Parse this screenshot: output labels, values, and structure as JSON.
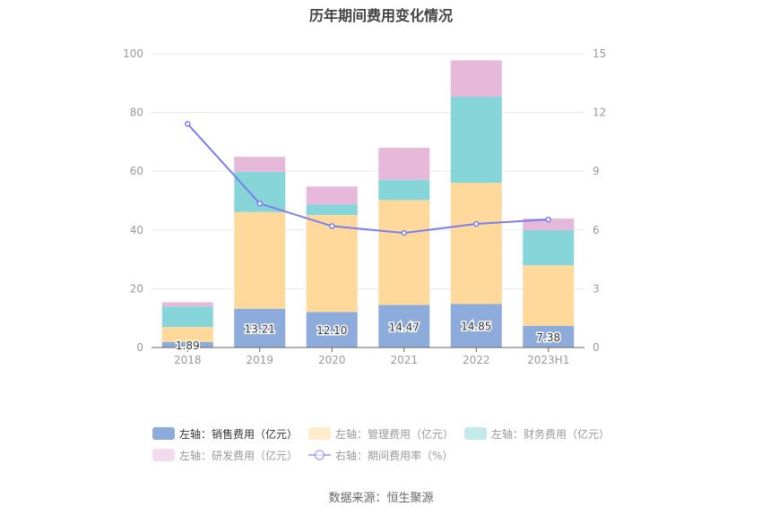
{
  "title": "历年期间费用变化情况",
  "footer": "数据来源：恒生聚源",
  "colors": {
    "sales": "#8dabdb",
    "admin": "#ffd99b",
    "finance": "#86d5d8",
    "rnd": "#e6b8d9",
    "rate": "#7a7ef0",
    "grid": "#e3e8f2",
    "axis": "#666666"
  },
  "legend": [
    {
      "label": "左轴：销售费用（亿元）",
      "key": "sales",
      "type": "bar",
      "active": true
    },
    {
      "label": "左轴：管理费用（亿元）",
      "key": "admin",
      "type": "bar",
      "active": false
    },
    {
      "label": "左轴：财务费用（亿元）",
      "key": "finance",
      "type": "bar",
      "active": false
    },
    {
      "label": "左轴：研发费用（亿元）",
      "key": "rnd",
      "type": "bar",
      "active": false
    },
    {
      "label": "右轴：期间费用率（%）",
      "key": "rate",
      "type": "line",
      "active": false
    }
  ],
  "chart_data": {
    "type": "bar",
    "title": "历年期间费用变化情况",
    "categories": [
      "2018",
      "2019",
      "2020",
      "2021",
      "2022",
      "2023H1"
    ],
    "stacked": true,
    "series": [
      {
        "name": "左轴：销售费用（亿元）",
        "key": "sales",
        "axis": "left",
        "values": [
          1.89,
          13.21,
          12.1,
          14.47,
          14.85,
          7.38
        ],
        "show_labels": true
      },
      {
        "name": "左轴：管理费用（亿元）",
        "key": "admin",
        "axis": "left",
        "values": [
          5.1,
          32.9,
          33.0,
          35.7,
          41.2,
          20.6
        ]
      },
      {
        "name": "左轴：财务费用（亿元）",
        "key": "finance",
        "axis": "left",
        "values": [
          7.0,
          13.7,
          3.6,
          6.9,
          29.3,
          12.0
        ]
      },
      {
        "name": "左轴：研发费用（亿元）",
        "key": "rnd",
        "axis": "left",
        "values": [
          1.4,
          5.1,
          6.1,
          10.9,
          12.4,
          3.9
        ]
      },
      {
        "name": "右轴：期间费用率（%）",
        "key": "rate",
        "axis": "right",
        "type": "line",
        "values": [
          11.42,
          7.35,
          6.2,
          5.85,
          6.31,
          6.54
        ]
      }
    ],
    "left_axis": {
      "min": 0,
      "max": 100,
      "ticks": [
        0,
        20,
        40,
        60,
        80,
        100
      ]
    },
    "right_axis": {
      "min": 0,
      "max": 15,
      "ticks": [
        0,
        3,
        6,
        9,
        12,
        15
      ]
    },
    "xlabel": "",
    "ylabel": "",
    "grid": true,
    "legend_position": "bottom"
  }
}
